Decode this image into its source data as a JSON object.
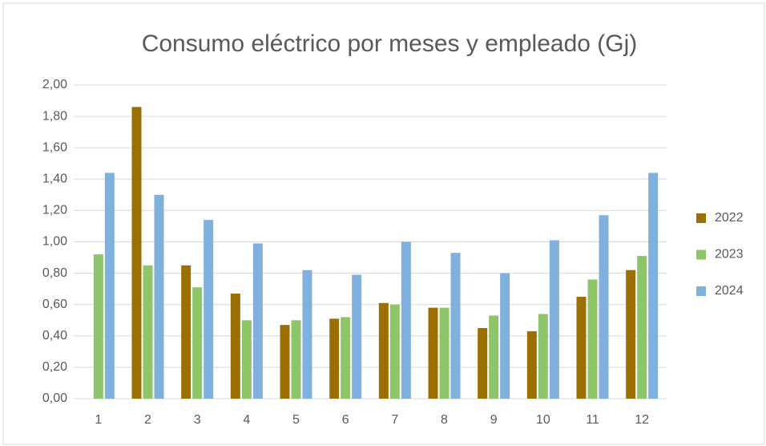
{
  "chart_data": {
    "type": "bar",
    "title": "Consumo eléctrico por meses y empleado (Gj)",
    "categories": [
      "1",
      "2",
      "3",
      "4",
      "5",
      "6",
      "7",
      "8",
      "9",
      "10",
      "11",
      "12"
    ],
    "series": [
      {
        "name": "2022",
        "color": "#9c7000",
        "values": [
          null,
          1.86,
          0.85,
          0.67,
          0.47,
          0.51,
          0.61,
          0.58,
          0.45,
          0.43,
          0.65,
          0.82
        ]
      },
      {
        "name": "2023",
        "color": "#8fc56a",
        "values": [
          0.92,
          0.85,
          0.71,
          0.5,
          0.5,
          0.52,
          0.6,
          0.58,
          0.53,
          0.54,
          0.76,
          0.91
        ]
      },
      {
        "name": "2024",
        "color": "#80b0de",
        "values": [
          1.44,
          1.3,
          1.14,
          0.99,
          0.82,
          0.79,
          1.0,
          0.93,
          0.8,
          1.01,
          1.17,
          1.44
        ]
      }
    ],
    "ylim": [
      0,
      2
    ],
    "yticks": [
      {
        "value": 0,
        "label": "0,00"
      },
      {
        "value": 0.2,
        "label": "0,20"
      },
      {
        "value": 0.4,
        "label": "0,40"
      },
      {
        "value": 0.6,
        "label": "0,60"
      },
      {
        "value": 0.8,
        "label": "0,80"
      },
      {
        "value": 1,
        "label": "1,00"
      },
      {
        "value": 1.2,
        "label": "1,20"
      },
      {
        "value": 1.4,
        "label": "1,40"
      },
      {
        "value": 1.6,
        "label": "1,60"
      },
      {
        "value": 1.8,
        "label": "1,80"
      },
      {
        "value": 2,
        "label": "2,00"
      }
    ],
    "grid": true,
    "legend": "right"
  }
}
